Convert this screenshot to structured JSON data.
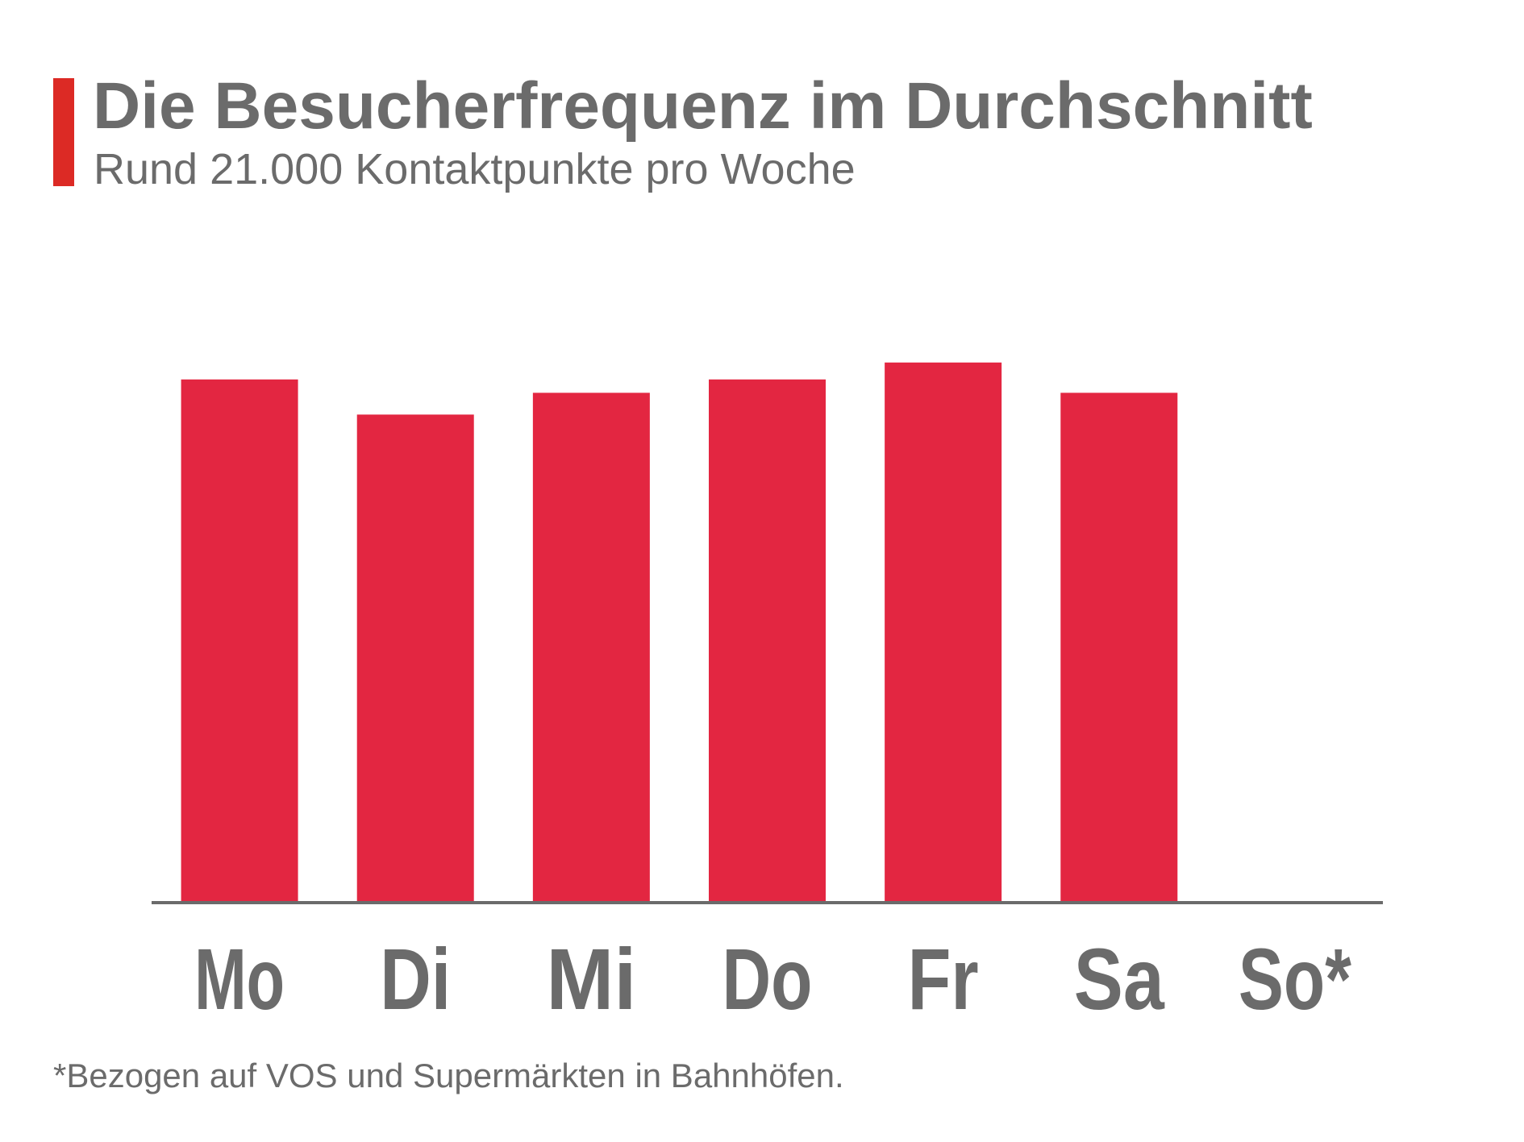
{
  "header": {
    "title": "Die Besucherfrequenz im Durchschnitt",
    "subtitle": "Rund 21.000 Kontaktpunkte pro Woche"
  },
  "footnote": "*Bezogen auf VOS und Supermärkten in Bahnhöfen.",
  "colors": {
    "bar": "#e32641",
    "accent": "#dc2a25",
    "text": "#6b6b6b",
    "axis": "#6b6b6b"
  },
  "chart_data": {
    "type": "bar",
    "categories": [
      "Mo",
      "Di",
      "Mi",
      "Do",
      "Fr",
      "Sa",
      "So*"
    ],
    "values": [
      3236,
      3018,
      3153,
      3236,
      3341,
      3153,
      null
    ],
    "ylim": [
      0,
      3500
    ],
    "grid": false,
    "legend": "none",
    "xlabel": "",
    "ylabel": ""
  }
}
